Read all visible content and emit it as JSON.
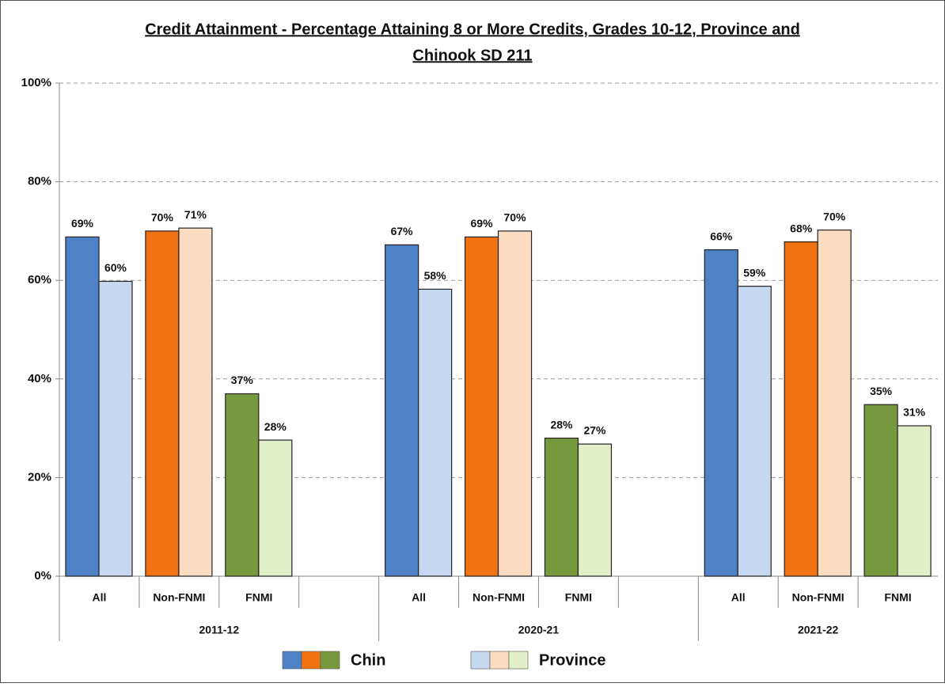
{
  "chart_data": {
    "type": "bar",
    "title": [
      "Credit Attainment - Percentage Attaining 8 or More Credits, Grades 10-12, Province and",
      "Chinook SD 211"
    ],
    "groups": [
      "2011-12",
      "2020-21",
      "2021-22"
    ],
    "categories": [
      "All",
      "Non-FNMI",
      "FNMI",
      "All",
      "Non-FNMI",
      "FNMI",
      "All",
      "Non-FNMI",
      "FNMI"
    ],
    "series": [
      {
        "name": "Chin",
        "colors": [
          "#4f81c7",
          "#f07212",
          "#77993e"
        ],
        "values": [
          68.8,
          70.0,
          37.0,
          67.2,
          68.8,
          28.0,
          66.2,
          67.8,
          34.8
        ],
        "value_labels": [
          "69%",
          "70%",
          "37%",
          "67%",
          "69%",
          "28%",
          "66%",
          "68%",
          "35%"
        ]
      },
      {
        "name": "Province",
        "colors": [
          "#c5d8f0",
          "#fcdcc0",
          "#e2efc9"
        ],
        "values": [
          59.8,
          70.6,
          27.6,
          58.2,
          70.0,
          26.8,
          58.8,
          70.2,
          30.5
        ],
        "value_labels": [
          "60%",
          "71%",
          "28%",
          "58%",
          "70%",
          "27%",
          "59%",
          "70%",
          "31%"
        ]
      }
    ],
    "ylim": [
      0,
      100
    ],
    "yticks": [
      {
        "value": 0,
        "label": "0%"
      },
      {
        "value": 20,
        "label": "20%"
      },
      {
        "value": 40,
        "label": "40%"
      },
      {
        "value": 60,
        "label": "60%"
      },
      {
        "value": 80,
        "label": "80%"
      },
      {
        "value": 100,
        "label": "100%"
      }
    ],
    "grid": true
  }
}
